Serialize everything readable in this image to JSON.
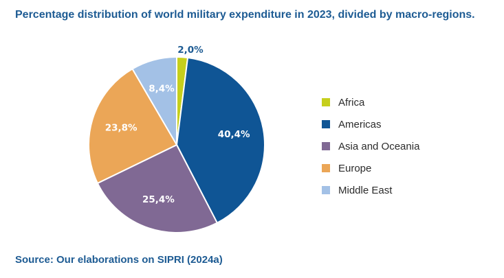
{
  "title": "Percentage distribution of world military expenditure in 2023, divided by macro-regions.",
  "source": "Source: Our elaborations on SIPRI (2024a)",
  "chart_data": {
    "type": "pie",
    "title": "Percentage distribution of world military expenditure in 2023, divided by macro-regions.",
    "slices": [
      {
        "name": "Africa",
        "value": 2.0,
        "label": "2,0%",
        "color": "#c6cf1c",
        "label_color": "#1d5b93"
      },
      {
        "name": "Americas",
        "value": 40.4,
        "label": "40,4%",
        "color": "#0f5595",
        "label_color": "#ffffff"
      },
      {
        "name": "Asia and Oceania",
        "value": 25.4,
        "label": "25,4%",
        "color": "#806994",
        "label_color": "#ffffff"
      },
      {
        "name": "Europe",
        "value": 23.8,
        "label": "23,8%",
        "color": "#eba657",
        "label_color": "#ffffff"
      },
      {
        "name": "Middle East",
        "value": 8.4,
        "label": "8,4%",
        "color": "#a3c1e6",
        "label_color": "#ffffff"
      }
    ],
    "legend_position": "right",
    "start_angle": "top, clockwise"
  }
}
